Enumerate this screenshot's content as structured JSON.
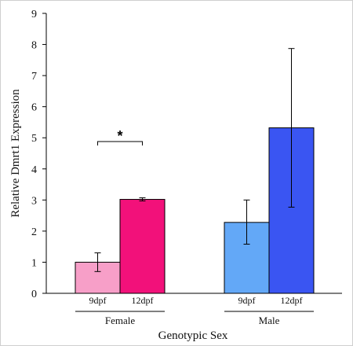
{
  "chart_data": {
    "type": "bar",
    "title": "",
    "xlabel": "Genotypic Sex",
    "ylabel": "Relative Dmrt1 Expression",
    "ylim": [
      0,
      9
    ],
    "yticks": [
      0,
      1,
      2,
      3,
      4,
      5,
      6,
      7,
      8,
      9
    ],
    "groups": [
      {
        "name": "Female",
        "bars": [
          {
            "label": "9dpf",
            "value": 1.0,
            "error_low": 0.7,
            "error_high": 1.3,
            "color": "#f79fc8"
          },
          {
            "label": "12dpf",
            "value": 3.02,
            "error_low": 2.97,
            "error_high": 3.07,
            "color": "#f2117a"
          }
        ],
        "significance": "*"
      },
      {
        "name": "Male",
        "bars": [
          {
            "label": "9dpf",
            "value": 2.28,
            "error_low": 1.58,
            "error_high": 3.0,
            "color": "#63a8f7"
          },
          {
            "label": "12dpf",
            "value": 5.32,
            "error_low": 2.77,
            "error_high": 7.87,
            "color": "#3a55f2"
          }
        ],
        "significance": ""
      }
    ],
    "grid": false,
    "legend": "none"
  }
}
